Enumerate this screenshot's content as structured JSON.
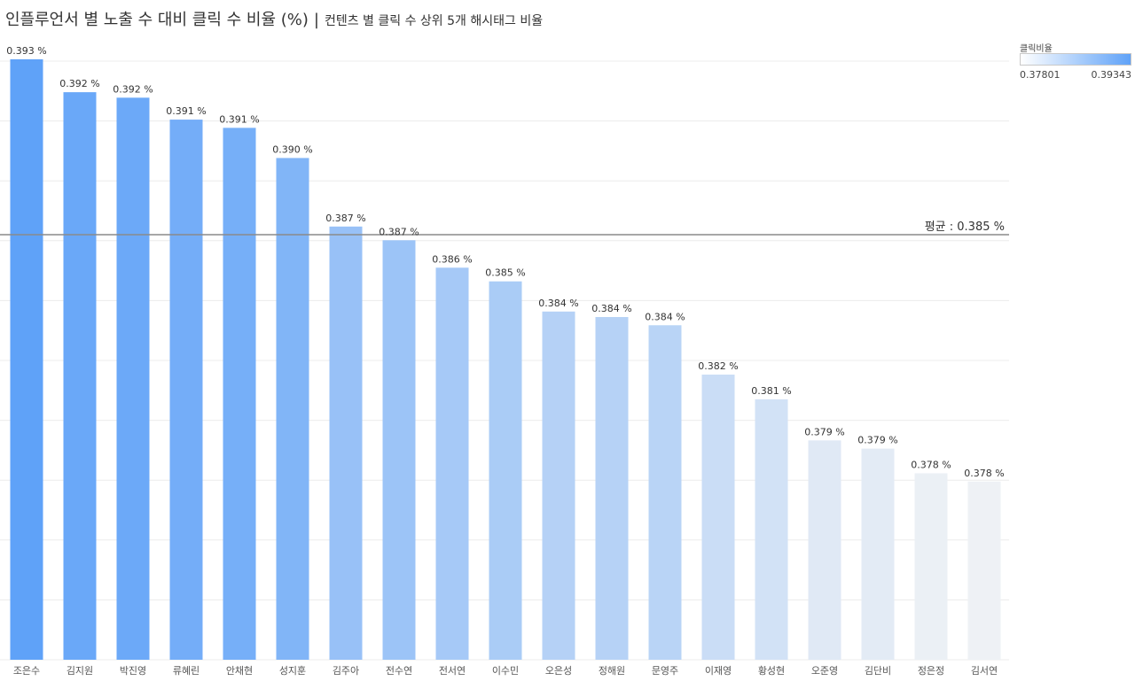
{
  "header": {
    "title": "인플루언서 별 노출 수 대비 클릭 수 비율 (%)",
    "separator": "|",
    "subtitle": "컨텐츠 별 클릭 수 상위 5개 해시태그 비율"
  },
  "legend": {
    "title": "클릭비율",
    "min_label": "0.37801",
    "max_label": "0.39343",
    "color_low": "#ffffff",
    "color_high": "#5fa2f8"
  },
  "chart_data": {
    "type": "bar",
    "categories": [
      "조은수",
      "김지원",
      "박진영",
      "류혜린",
      "안채현",
      "성지훈",
      "김주아",
      "전수연",
      "전서연",
      "이수민",
      "오은성",
      "정해원",
      "문영주",
      "이재영",
      "황성현",
      "오준영",
      "김단비",
      "정은정",
      "김서연"
    ],
    "values": [
      0.393,
      0.392,
      0.392,
      0.391,
      0.391,
      0.39,
      0.387,
      0.387,
      0.386,
      0.385,
      0.384,
      0.384,
      0.384,
      0.382,
      0.381,
      0.379,
      0.379,
      0.378,
      0.378
    ],
    "value_labels": [
      "0.393 %",
      "0.392 %",
      "0.392 %",
      "0.391 %",
      "0.391 %",
      "0.390 %",
      "0.387 %",
      "0.387 %",
      "0.386 %",
      "0.385 %",
      "0.384 %",
      "0.384 %",
      "0.384 %",
      "0.382 %",
      "0.381 %",
      "0.379 %",
      "0.379 %",
      "0.378 %",
      "0.378 %"
    ],
    "color_values": [
      0.3934,
      0.3922,
      0.392,
      0.3912,
      0.3909,
      0.3898,
      0.3873,
      0.3868,
      0.3858,
      0.3853,
      0.3842,
      0.384,
      0.3837,
      0.3819,
      0.381,
      0.3795,
      0.3792,
      0.3783,
      0.378
    ],
    "average": {
      "value": 0.385,
      "label": "평균 : 0.385 %"
    },
    "color_range": [
      0.37801,
      0.39343
    ],
    "ylim": [
      0.3715,
      0.3944
    ],
    "grid": true,
    "legend_position": "top-right"
  }
}
